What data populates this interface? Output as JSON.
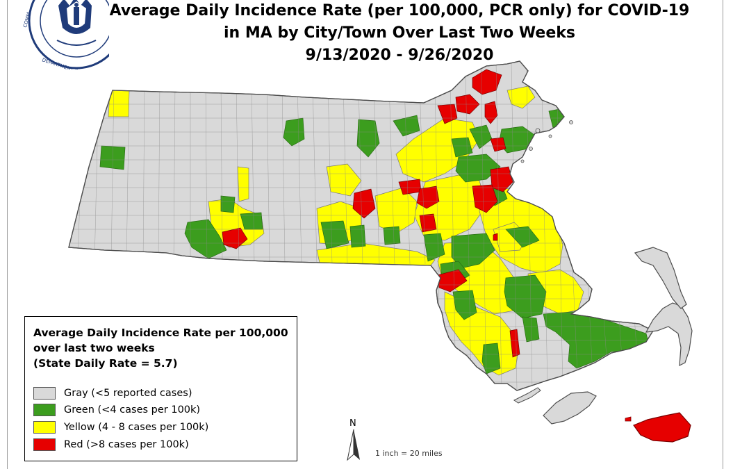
{
  "header": {
    "title_line1": "Average Daily Incidence Rate (per 100,000, PCR only) for COVID-19",
    "title_line2": "in MA by City/Town Over Last Two Weeks",
    "title_line3": "9/13/2020 - 9/26/2020"
  },
  "seal": {
    "icon": "massachusetts-state-seal-icon",
    "ring_text_top": "COMMONWEALTH OF MASSACHUSETTS",
    "ring_text_bottom": "DEPARTMENT OF PUBLIC HEALTH"
  },
  "legend": {
    "title_line1": "Average Daily Incidence Rate per 100,000",
    "title_line2": "over last two weeks",
    "title_line3": "(State Daily Rate = 5.7)",
    "items": [
      {
        "label": "Gray (<5 reported cases)",
        "color": "#d9d9d9"
      },
      {
        "label": "Green (<4 cases per 100k)",
        "color": "#3c9d1e"
      },
      {
        "label": "Yellow (4 - 8 cases per 100k)",
        "color": "#ffff00"
      },
      {
        "label": "Red (>8 cases per 100k)",
        "color": "#e60000"
      }
    ]
  },
  "north_arrow": {
    "letter": "N",
    "icon": "north-arrow-icon"
  },
  "scale_bar": {
    "text": "1 inch = 20 miles"
  },
  "colors": {
    "gray": "#d9d9d9",
    "green": "#3c9d1e",
    "yellow": "#ffff00",
    "red": "#e60000",
    "boundary": "#7a7a7a"
  }
}
